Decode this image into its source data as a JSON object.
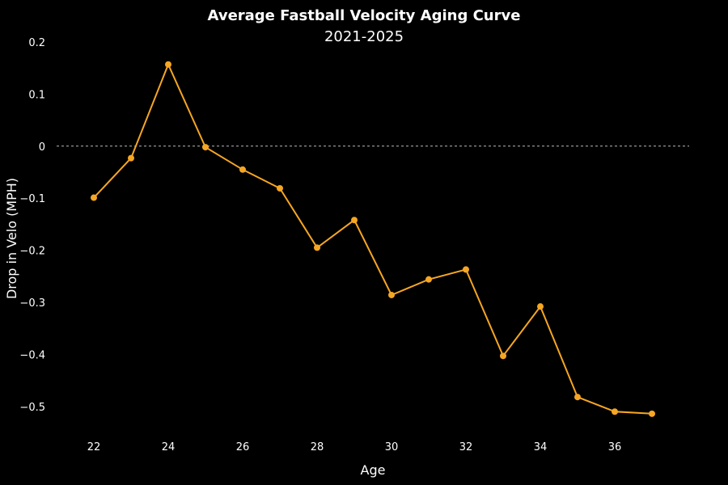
{
  "chart_data": {
    "type": "line",
    "title": "Average Fastball Velocity Aging Curve",
    "subtitle": "2021-2025",
    "xlabel": "Age",
    "ylabel": "Drop in Velo (MPH)",
    "xlim": [
      21,
      38
    ],
    "ylim": [
      -0.55,
      0.2
    ],
    "xticks": [
      22,
      24,
      26,
      28,
      30,
      32,
      34,
      36
    ],
    "yticks": [
      0.2,
      0.1,
      0,
      -0.1,
      -0.2,
      -0.3,
      -0.4,
      -0.5
    ],
    "ytick_labels": [
      "0.2",
      "0.1",
      "0",
      "−0.1",
      "−0.2",
      "−0.3",
      "−0.4",
      "−0.5"
    ],
    "reference_line": 0,
    "grid": false,
    "color": "#F5A623",
    "series": [
      {
        "x": [
          22,
          23,
          24,
          25,
          26,
          27,
          28,
          29,
          30,
          31,
          32,
          33,
          34,
          35,
          36,
          37
        ],
        "values": [
          -0.099,
          -0.023,
          0.157,
          -0.002,
          -0.045,
          -0.081,
          -0.195,
          -0.142,
          -0.286,
          -0.256,
          -0.237,
          -0.403,
          -0.308,
          -0.482,
          -0.51,
          -0.514
        ]
      }
    ]
  }
}
